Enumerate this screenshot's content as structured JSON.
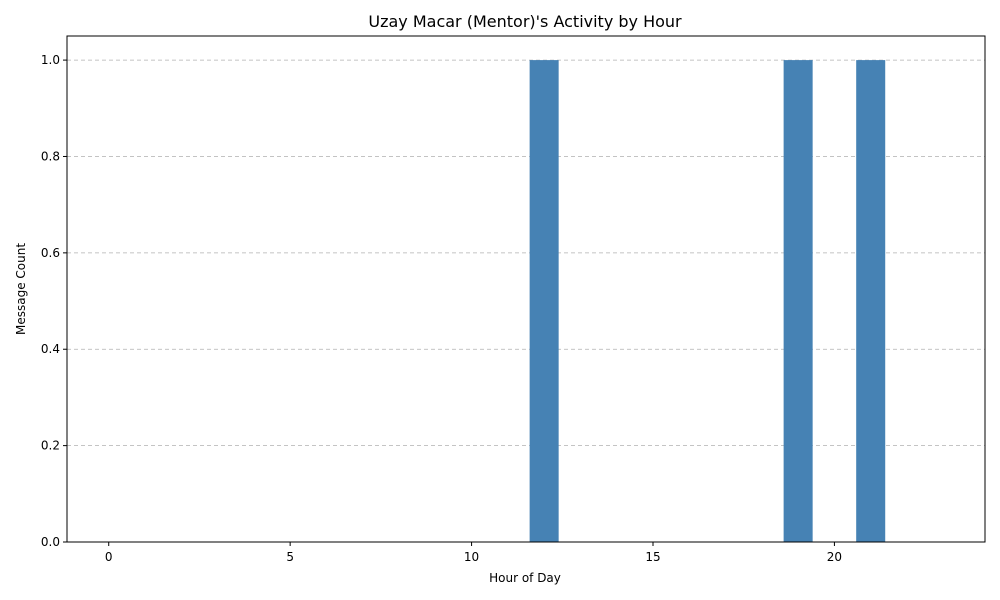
{
  "chart_data": {
    "type": "bar",
    "title": "Uzay Macar (Mentor)'s Activity by Hour",
    "xlabel": "Hour of Day",
    "ylabel": "Message Count",
    "x": [
      0,
      1,
      2,
      3,
      4,
      5,
      6,
      7,
      8,
      9,
      10,
      11,
      12,
      13,
      14,
      15,
      16,
      17,
      18,
      19,
      20,
      21,
      22,
      23
    ],
    "values": [
      0,
      0,
      0,
      0,
      0,
      0,
      0,
      0,
      0,
      0,
      0,
      0,
      1,
      0,
      0,
      0,
      0,
      0,
      0,
      1,
      0,
      1,
      0,
      0
    ],
    "xlim": [
      -1.15,
      24.15
    ],
    "ylim": [
      0,
      1.05
    ],
    "xticks": [
      0,
      5,
      10,
      15,
      20
    ],
    "yticks": [
      0.0,
      0.2,
      0.4,
      0.6,
      0.8,
      1.0
    ],
    "xtick_labels": [
      "0",
      "5",
      "10",
      "15",
      "20"
    ],
    "ytick_labels": [
      "0.0",
      "0.2",
      "0.4",
      "0.6",
      "0.8",
      "1.0"
    ],
    "grid": "y-dashed",
    "bar_color": "#4682b4"
  }
}
